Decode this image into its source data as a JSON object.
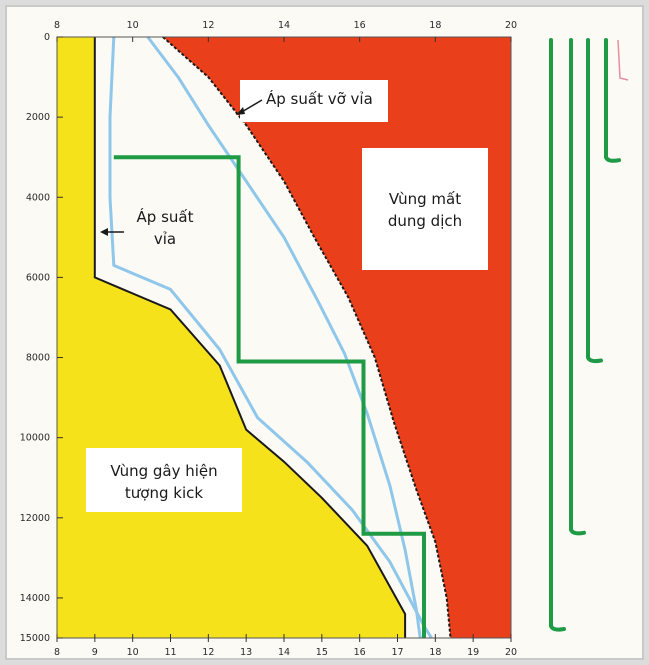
{
  "chart_data": {
    "type": "diagram",
    "x_axis": {
      "top_ticks": [
        "8",
        "10",
        "12",
        "14",
        "16",
        "18",
        "20"
      ],
      "bottom_ticks": [
        "8",
        "9",
        "10",
        "11",
        "12",
        "13",
        "14",
        "15",
        "16",
        "17",
        "18",
        "19",
        "20"
      ],
      "range": [
        8,
        20
      ]
    },
    "y_axis": {
      "ticks": [
        "0",
        "2000",
        "4000",
        "6000",
        "8000",
        "10000",
        "12000",
        "14000",
        "15000"
      ],
      "range": [
        0,
        15000
      ],
      "inverted": true
    },
    "labels": {
      "fracture_pressure": "Áp suất vỡ vỉa",
      "loss_zone_line1": "Vùng mất",
      "loss_zone_line2": "dung dịch",
      "pore_pressure_line1": "Áp suất",
      "pore_pressure_line2": "vỉa",
      "kick_zone_line1": "Vùng gây hiện",
      "kick_zone_line2": "tượng kick"
    },
    "curves": {
      "pore_pressure": [
        [
          9,
          0
        ],
        [
          9,
          6000
        ],
        [
          11,
          6800
        ],
        [
          12.3,
          8200
        ],
        [
          13,
          9800
        ],
        [
          14,
          10600
        ],
        [
          15,
          11500
        ],
        [
          16.2,
          12700
        ],
        [
          17.2,
          14400
        ],
        [
          17.2,
          15000
        ]
      ],
      "fracture_pressure": [
        [
          10.8,
          0
        ],
        [
          12,
          1000
        ],
        [
          13,
          2200
        ],
        [
          14,
          3600
        ],
        [
          14.8,
          5000
        ],
        [
          15.7,
          6500
        ],
        [
          16.4,
          8000
        ],
        [
          16.9,
          9600
        ],
        [
          17.5,
          11300
        ],
        [
          18,
          12600
        ],
        [
          18.3,
          14000
        ],
        [
          18.4,
          15000
        ]
      ],
      "mud_weight_lower": [
        [
          9.5,
          0
        ],
        [
          9.4,
          2000
        ],
        [
          9.4,
          4000
        ],
        [
          9.5,
          5700
        ],
        [
          11,
          6300
        ],
        [
          12.3,
          7800
        ],
        [
          13.3,
          9500
        ],
        [
          14.6,
          10600
        ],
        [
          15.8,
          11800
        ],
        [
          16.8,
          13100
        ],
        [
          17.7,
          14700
        ],
        [
          17.9,
          15000
        ]
      ],
      "mud_weight_upper": [
        [
          10.4,
          0
        ],
        [
          11.2,
          1000
        ],
        [
          12,
          2200
        ],
        [
          13,
          3600
        ],
        [
          14,
          5000
        ],
        [
          14.9,
          6600
        ],
        [
          15.6,
          7900
        ],
        [
          16.2,
          9400
        ],
        [
          16.8,
          11200
        ],
        [
          17.2,
          12800
        ],
        [
          17.5,
          14300
        ],
        [
          17.6,
          15000
        ]
      ],
      "casing_steps": [
        [
          9.5,
          3000
        ],
        [
          12.8,
          3000
        ],
        [
          12.8,
          8100
        ],
        [
          16.1,
          8100
        ],
        [
          16.1,
          12400
        ],
        [
          17.7,
          12400
        ],
        [
          17.7,
          15000
        ]
      ]
    },
    "casing_strings": [
      {
        "depth": 3000
      },
      {
        "depth": 8000
      },
      {
        "depth": 12300
      },
      {
        "depth": 14700
      }
    ],
    "colors": {
      "kick_zone": "#f6e21b",
      "loss_zone": "#ea3f1b",
      "casing": "#1f9a45",
      "mud_line": "#8fc7ea",
      "outline": "#1a1a1a",
      "plot_background": "#fbfaf5"
    }
  }
}
